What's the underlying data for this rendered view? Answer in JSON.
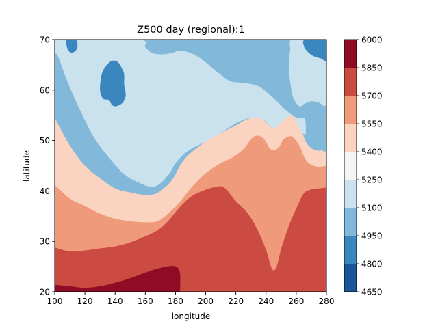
{
  "chart_data": {
    "type": "contour",
    "title": "Z500 day (regional):1",
    "xlabel": "longitude",
    "ylabel": "latitude",
    "xlim": [
      100,
      280
    ],
    "ylim": [
      20,
      70
    ],
    "xticks": [
      "100",
      "120",
      "140",
      "160",
      "180",
      "200",
      "220",
      "240",
      "260",
      "280"
    ],
    "yticks": [
      "20",
      "30",
      "40",
      "50",
      "60",
      "70"
    ],
    "colorbar": {
      "levels": [
        4650,
        4800,
        4950,
        5100,
        5250,
        5400,
        5550,
        5700,
        5850,
        6000
      ],
      "tick_labels": [
        "4650",
        "4800",
        "4950",
        "5100",
        "5250",
        "5400",
        "5550",
        "5700",
        "5850",
        "6000"
      ],
      "colors": [
        "#1a5597",
        "#3a87c0",
        "#82b8d9",
        "#cae1ee",
        "#f4f4f4",
        "#fad4c0",
        "#ef9b7b",
        "#cb4a42",
        "#8e0d25"
      ]
    },
    "contour_boundaries": [
      {
        "lower_band": 5,
        "points": [
          [
            100,
            54.5
          ],
          [
            110,
            49
          ],
          [
            120,
            45
          ],
          [
            130,
            42.5
          ],
          [
            140,
            40.5
          ],
          [
            150,
            39.7
          ],
          [
            160,
            39.2
          ],
          [
            168,
            39.6
          ],
          [
            175,
            41.5
          ],
          [
            180,
            44
          ],
          [
            185,
            46.5
          ],
          [
            190,
            48
          ],
          [
            200,
            49.8
          ],
          [
            210,
            51.5
          ],
          [
            220,
            53
          ],
          [
            228,
            54.3
          ],
          [
            235,
            54.5
          ],
          [
            240,
            53.7
          ],
          [
            244,
            52.5
          ],
          [
            248,
            53
          ],
          [
            253,
            54.5
          ],
          [
            258,
            55
          ],
          [
            262,
            53.5
          ],
          [
            266,
            50
          ],
          [
            270,
            48.5
          ],
          [
            275,
            48
          ],
          [
            280,
            48.5
          ]
        ]
      },
      {
        "lower_band": 6,
        "points": [
          [
            100,
            41.2
          ],
          [
            110,
            38.5
          ],
          [
            120,
            37
          ],
          [
            130,
            35.5
          ],
          [
            140,
            34.5
          ],
          [
            150,
            34
          ],
          [
            160,
            33.8
          ],
          [
            168,
            34
          ],
          [
            175,
            35.5
          ],
          [
            182,
            37.5
          ],
          [
            190,
            40.5
          ],
          [
            200,
            43.5
          ],
          [
            210,
            45.5
          ],
          [
            218,
            46.7
          ],
          [
            225,
            48.3
          ],
          [
            232,
            50.8
          ],
          [
            238,
            50.5
          ],
          [
            243,
            48.3
          ],
          [
            248,
            48.5
          ],
          [
            252,
            50.3
          ],
          [
            257,
            50.8
          ],
          [
            262,
            49
          ],
          [
            266,
            46.3
          ],
          [
            270,
            45.2
          ],
          [
            275,
            44.8
          ],
          [
            280,
            45
          ]
        ]
      },
      {
        "lower_band": 7,
        "points": [
          [
            100,
            28.8
          ],
          [
            110,
            28
          ],
          [
            120,
            28.2
          ],
          [
            130,
            28.6
          ],
          [
            140,
            29
          ],
          [
            150,
            29.8
          ],
          [
            160,
            31
          ],
          [
            168,
            32.2
          ],
          [
            175,
            34
          ],
          [
            182,
            36.5
          ],
          [
            190,
            38.8
          ],
          [
            198,
            40
          ],
          [
            205,
            40.7
          ],
          [
            212,
            40.7
          ],
          [
            220,
            38
          ],
          [
            228,
            35.5
          ],
          [
            234,
            32.5
          ],
          [
            240,
            28.3
          ],
          [
            244,
            24.5
          ],
          [
            247,
            25
          ],
          [
            250,
            28.5
          ],
          [
            255,
            33
          ],
          [
            260,
            36.5
          ],
          [
            265,
            39.5
          ],
          [
            270,
            40.3
          ],
          [
            275,
            40.5
          ],
          [
            280,
            40.7
          ]
        ]
      },
      {
        "lower_band": 8,
        "points": [
          [
            100,
            21.4
          ],
          [
            110,
            21.1
          ],
          [
            120,
            20.8
          ],
          [
            130,
            21.1
          ],
          [
            140,
            21.8
          ],
          [
            150,
            22.7
          ],
          [
            160,
            23.8
          ],
          [
            168,
            24.6
          ],
          [
            176,
            25.1
          ],
          [
            181,
            24.9
          ],
          [
            183,
            23.5
          ],
          [
            183,
            20
          ]
        ]
      }
    ],
    "cold_regions": [
      {
        "band": 2,
        "points": [
          [
            100,
            70
          ],
          [
            140,
            70
          ],
          [
            160,
            70
          ],
          [
            165,
            68.5
          ],
          [
            170,
            66.5
          ],
          [
            176,
            66
          ],
          [
            182,
            66.5
          ],
          [
            188,
            66.5
          ],
          [
            195,
            65.7
          ],
          [
            205,
            64.5
          ],
          [
            212,
            63
          ],
          [
            220,
            62
          ],
          [
            230,
            62.3
          ],
          [
            240,
            61.8
          ],
          [
            248,
            60.8
          ],
          [
            255,
            59
          ],
          [
            260,
            57.5
          ],
          [
            266,
            56.5
          ],
          [
            272,
            56
          ],
          [
            276,
            56.3
          ],
          [
            280,
            56.8
          ],
          [
            280,
            48.5
          ],
          [
            276,
            48.2
          ],
          [
            270,
            48.6
          ],
          [
            266,
            50.2
          ],
          [
            262,
            53.5
          ],
          [
            255,
            55
          ],
          [
            248,
            53.2
          ],
          [
            244,
            52.6
          ],
          [
            240,
            53.6
          ],
          [
            235,
            54.6
          ],
          [
            228,
            54.3
          ],
          [
            220,
            53.2
          ],
          [
            212,
            51.8
          ],
          [
            200,
            49.8
          ],
          [
            190,
            47.5
          ],
          [
            184,
            45.5
          ],
          [
            178,
            42.3
          ],
          [
            172,
            40.5
          ],
          [
            168,
            40.5
          ],
          [
            162,
            40
          ],
          [
            155,
            40.3
          ],
          [
            145,
            41.8
          ],
          [
            135,
            44.2
          ],
          [
            125,
            48.6
          ],
          [
            115,
            56
          ],
          [
            106,
            62
          ],
          [
            100,
            66.5
          ]
        ]
      },
      {
        "band": 3,
        "points": [
          [
            100,
            70
          ],
          [
            155,
            70
          ],
          [
            160,
            68.5
          ],
          [
            165,
            67.3
          ],
          [
            172,
            67.1
          ],
          [
            178,
            67.4
          ],
          [
            184,
            67.8
          ],
          [
            192,
            67.1
          ],
          [
            200,
            65.5
          ],
          [
            208,
            63.5
          ],
          [
            216,
            61.8
          ],
          [
            222,
            61.5
          ],
          [
            230,
            61.2
          ],
          [
            236,
            60.6
          ],
          [
            242,
            59.2
          ],
          [
            248,
            57.5
          ],
          [
            254,
            55.8
          ],
          [
            260,
            54.6
          ],
          [
            264,
            54.5
          ],
          [
            266,
            54
          ],
          [
            266,
            51.2
          ],
          [
            262,
            52.5
          ],
          [
            258,
            54.8
          ],
          [
            253,
            54.5
          ],
          [
            248,
            53
          ],
          [
            244,
            52.5
          ],
          [
            240,
            53.7
          ],
          [
            235,
            54.5
          ],
          [
            228,
            54.4
          ],
          [
            220,
            53.4
          ],
          [
            210,
            51.5
          ],
          [
            200,
            49.8
          ],
          [
            192,
            48.6
          ],
          [
            186,
            47.4
          ],
          [
            180,
            45.5
          ],
          [
            176,
            43.5
          ],
          [
            170,
            41.5
          ],
          [
            164,
            40.8
          ],
          [
            156,
            41.6
          ],
          [
            146,
            43.3
          ],
          [
            136,
            46.6
          ],
          [
            126,
            50.6
          ],
          [
            116,
            56.5
          ],
          [
            108,
            62
          ],
          [
            102,
            66.8
          ],
          [
            100,
            67.3
          ]
        ]
      },
      {
        "band": 3,
        "points": [
          [
            257,
            70
          ],
          [
            272,
            70
          ],
          [
            276,
            69.5
          ],
          [
            280,
            69
          ],
          [
            280,
            57.7
          ],
          [
            275,
            57.5
          ],
          [
            270,
            57.8
          ],
          [
            265,
            57.2
          ],
          [
            262,
            56.8
          ],
          [
            258,
            58.5
          ],
          [
            256,
            61.5
          ],
          [
            255,
            65
          ],
          [
            256,
            68
          ]
        ]
      },
      {
        "band": 1,
        "points": [
          [
            146,
            61
          ],
          [
            146,
            63
          ],
          [
            145,
            64
          ],
          [
            142,
            65.5
          ],
          [
            138,
            65.8
          ],
          [
            134,
            64.8
          ],
          [
            131,
            63
          ],
          [
            130,
            60
          ],
          [
            132,
            58.3
          ],
          [
            136,
            58
          ],
          [
            138,
            57
          ],
          [
            141,
            56.8
          ],
          [
            145,
            57.5
          ],
          [
            147,
            59
          ]
        ]
      },
      {
        "band": 1,
        "points": [
          [
            108,
            70
          ],
          [
            114,
            70
          ],
          [
            115,
            68.5
          ],
          [
            113,
            67.6
          ],
          [
            110,
            67.5
          ],
          [
            108,
            68.6
          ]
        ]
      },
      {
        "band": 1,
        "points": [
          [
            266,
            70
          ],
          [
            280,
            70
          ],
          [
            280,
            66
          ],
          [
            276,
            66.3
          ],
          [
            271,
            66.8
          ],
          [
            267,
            67.8
          ],
          [
            265,
            68.8
          ]
        ]
      }
    ]
  }
}
